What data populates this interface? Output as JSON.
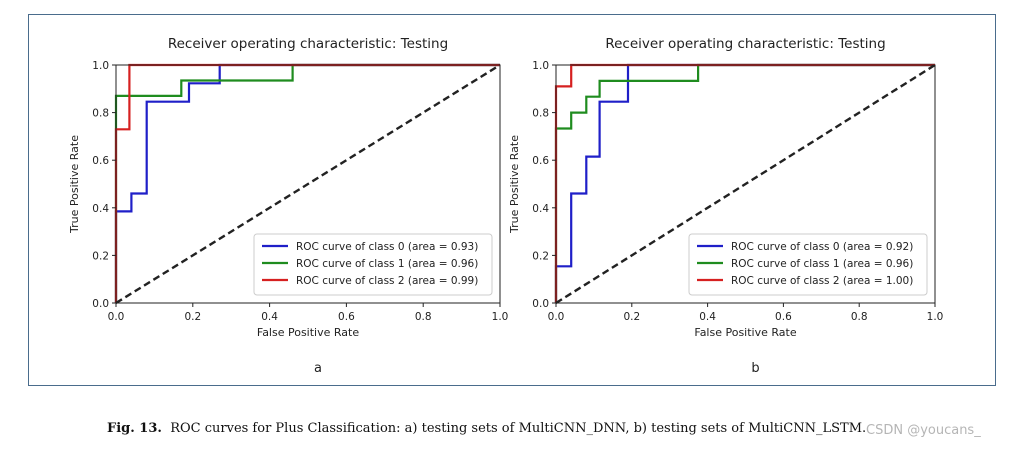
{
  "caption": {
    "label": "Fig. 13.",
    "text": "ROC curves for Plus Classification: a) testing sets of MultiCNN_DNN, b) testing sets of MultiCNN_LSTM."
  },
  "watermark": "CSDN @youcans_",
  "chart_data": [
    {
      "type": "line",
      "panel_label": "a",
      "title": "Receiver operating characteristic: Testing",
      "xlabel": "False Positive Rate",
      "ylabel": "True Positive Rate",
      "xlim": [
        0.0,
        1.0
      ],
      "ylim": [
        0.0,
        1.0
      ],
      "xticks": [
        "0.0",
        "0.2",
        "0.4",
        "0.6",
        "0.8",
        "1.0"
      ],
      "yticks": [
        "0.0",
        "0.2",
        "0.4",
        "0.6",
        "0.8",
        "1.0"
      ],
      "legend_position": "bottom-right",
      "grid": false,
      "series": [
        {
          "name": "ROC curve of class 0 (area = 0.93)",
          "color": "#1f1fc8",
          "x": [
            0,
            0,
            0.04,
            0.04,
            0.08,
            0.08,
            0.19,
            0.19,
            0.27,
            0.27,
            1.0
          ],
          "y": [
            0,
            0.385,
            0.385,
            0.46,
            0.46,
            0.846,
            0.846,
            0.923,
            0.923,
            1.0,
            1.0
          ]
        },
        {
          "name": "ROC curve of class 1 (area = 0.96)",
          "color": "#1f8c1f",
          "x": [
            0,
            0,
            0.17,
            0.17,
            0.46,
            0.46,
            1.0
          ],
          "y": [
            0,
            0.87,
            0.87,
            0.935,
            0.935,
            1.0,
            1.0
          ]
        },
        {
          "name": "ROC curve of class 2 (area = 0.99)",
          "color": "#d62020",
          "x": [
            0,
            0,
            0.035,
            0.035,
            1.0
          ],
          "y": [
            0,
            0.73,
            0.73,
            1.0,
            1.0
          ]
        },
        {
          "name": "chance",
          "color": "#222222",
          "dashed": true,
          "x": [
            0,
            1.0
          ],
          "y": [
            0,
            1.0
          ]
        }
      ]
    },
    {
      "type": "line",
      "panel_label": "b",
      "title": "Receiver operating characteristic: Testing",
      "xlabel": "False Positive Rate",
      "ylabel": "True Positive Rate",
      "xlim": [
        0.0,
        1.0
      ],
      "ylim": [
        0.0,
        1.0
      ],
      "xticks": [
        "0.0",
        "0.2",
        "0.4",
        "0.6",
        "0.8",
        "1.0"
      ],
      "yticks": [
        "0.0",
        "0.2",
        "0.4",
        "0.6",
        "0.8",
        "1.0"
      ],
      "legend_position": "bottom-right",
      "grid": false,
      "series": [
        {
          "name": "ROC curve of class 0 (area = 0.92)",
          "color": "#1f1fc8",
          "x": [
            0,
            0,
            0.04,
            0.04,
            0.08,
            0.08,
            0.115,
            0.115,
            0.19,
            0.19,
            1.0
          ],
          "y": [
            0,
            0.154,
            0.154,
            0.46,
            0.46,
            0.615,
            0.615,
            0.846,
            0.846,
            1.0,
            1.0
          ]
        },
        {
          "name": "ROC curve of class 1 (area = 0.96)",
          "color": "#1f8c1f",
          "x": [
            0,
            0,
            0.04,
            0.04,
            0.08,
            0.08,
            0.115,
            0.115,
            0.375,
            0.375,
            1.0
          ],
          "y": [
            0,
            0.733,
            0.733,
            0.8,
            0.8,
            0.867,
            0.867,
            0.933,
            0.933,
            1.0,
            1.0
          ]
        },
        {
          "name": "ROC curve of class 2 (area = 1.00)",
          "color": "#d62020",
          "x": [
            0,
            0,
            0.04,
            0.04,
            1.0
          ],
          "y": [
            0,
            0.91,
            0.91,
            1.0,
            1.0
          ]
        },
        {
          "name": "chance",
          "color": "#222222",
          "dashed": true,
          "x": [
            0,
            1.0
          ],
          "y": [
            0,
            1.0
          ]
        }
      ]
    }
  ]
}
